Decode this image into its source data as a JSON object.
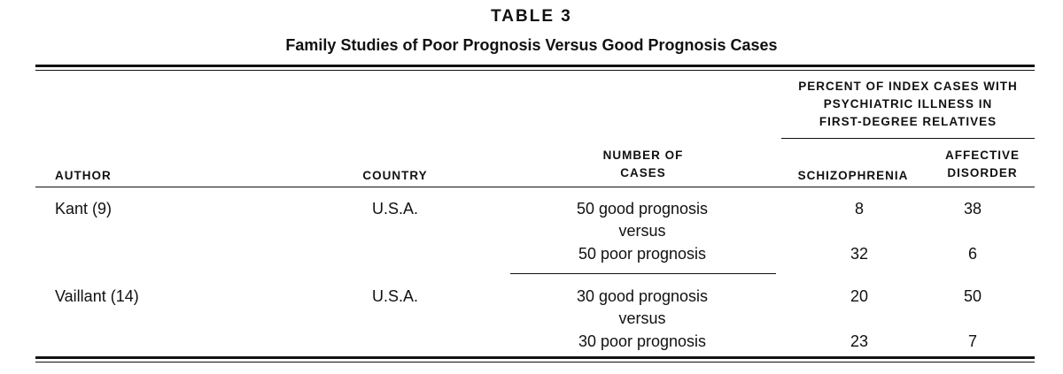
{
  "table": {
    "number": "TABLE 3",
    "title": "Family Studies of Poor Prognosis Versus Good Prognosis Cases",
    "headers": {
      "percent_group": [
        "PERCENT OF INDEX CASES WITH",
        "PSYCHIATRIC ILLNESS IN",
        "FIRST-DEGREE RELATIVES"
      ],
      "author": "AUTHOR",
      "country": "COUNTRY",
      "cases": [
        "NUMBER OF",
        "CASES"
      ],
      "schizophrenia": "SCHIZOPHRENIA",
      "affective": [
        "AFFECTIVE",
        "DISORDER"
      ]
    },
    "rows": [
      {
        "author": "Kant (9)",
        "country": "U.S.A.",
        "good_cases": "50 good prognosis",
        "versus": "versus",
        "poor_cases": "50  poor prognosis",
        "good_schizophrenia": "8",
        "good_affective": "38",
        "poor_schizophrenia": "32",
        "poor_affective": "6"
      },
      {
        "author": "Vaillant (14)",
        "country": "U.S.A.",
        "good_cases": "30 good prognosis",
        "versus": "versus",
        "poor_cases": "30  poor prognosis",
        "good_schizophrenia": "20",
        "good_affective": "50",
        "poor_schizophrenia": "23",
        "poor_affective": "7"
      }
    ]
  }
}
